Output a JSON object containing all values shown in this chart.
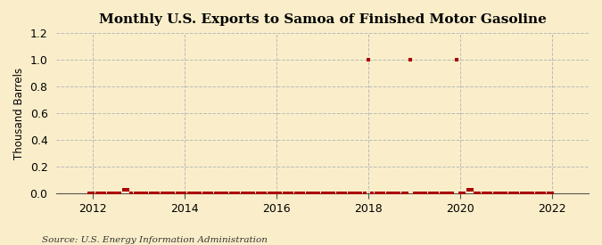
{
  "title": "Monthly U.S. Exports to Samoa of Finished Motor Gasoline",
  "ylabel": "Thousand Barrels",
  "source": "Source: U.S. Energy Information Administration",
  "background_color": "#faeeca",
  "line_color": "#aa0000",
  "grid_color": "#bbbbbb",
  "ylim": [
    0,
    1.2
  ],
  "yticks": [
    0.0,
    0.2,
    0.4,
    0.6,
    0.8,
    1.0,
    1.2
  ],
  "xlim_start": 2011.2,
  "xlim_end": 2022.8,
  "xticks": [
    2012,
    2014,
    2016,
    2018,
    2020,
    2022
  ],
  "data": [
    [
      2011.917,
      0.0
    ],
    [
      2012.0,
      0.0
    ],
    [
      2012.083,
      0.0
    ],
    [
      2012.167,
      0.0
    ],
    [
      2012.25,
      0.0
    ],
    [
      2012.333,
      0.0
    ],
    [
      2012.417,
      0.0
    ],
    [
      2012.5,
      0.0
    ],
    [
      2012.583,
      0.0
    ],
    [
      2012.667,
      0.03
    ],
    [
      2012.75,
      0.03
    ],
    [
      2012.833,
      0.0
    ],
    [
      2012.917,
      0.0
    ],
    [
      2013.0,
      0.0
    ],
    [
      2013.083,
      0.0
    ],
    [
      2013.167,
      0.0
    ],
    [
      2013.25,
      0.0
    ],
    [
      2013.333,
      0.0
    ],
    [
      2013.417,
      0.0
    ],
    [
      2013.5,
      0.0
    ],
    [
      2013.583,
      0.0
    ],
    [
      2013.667,
      0.0
    ],
    [
      2013.75,
      0.0
    ],
    [
      2013.833,
      0.0
    ],
    [
      2013.917,
      0.0
    ],
    [
      2014.0,
      0.0
    ],
    [
      2014.083,
      0.0
    ],
    [
      2014.167,
      0.0
    ],
    [
      2014.25,
      0.0
    ],
    [
      2014.333,
      0.0
    ],
    [
      2014.417,
      0.0
    ],
    [
      2014.5,
      0.0
    ],
    [
      2014.583,
      0.0
    ],
    [
      2014.667,
      0.0
    ],
    [
      2014.75,
      0.0
    ],
    [
      2014.833,
      0.0
    ],
    [
      2014.917,
      0.0
    ],
    [
      2015.0,
      0.0
    ],
    [
      2015.083,
      0.0
    ],
    [
      2015.167,
      0.0
    ],
    [
      2015.25,
      0.0
    ],
    [
      2015.333,
      0.0
    ],
    [
      2015.417,
      0.0
    ],
    [
      2015.5,
      0.0
    ],
    [
      2015.583,
      0.0
    ],
    [
      2015.667,
      0.0
    ],
    [
      2015.75,
      0.0
    ],
    [
      2015.833,
      0.0
    ],
    [
      2015.917,
      0.0
    ],
    [
      2016.0,
      0.0
    ],
    [
      2016.083,
      0.0
    ],
    [
      2016.167,
      0.0
    ],
    [
      2016.25,
      0.0
    ],
    [
      2016.333,
      0.0
    ],
    [
      2016.417,
      0.0
    ],
    [
      2016.5,
      0.0
    ],
    [
      2016.583,
      0.0
    ],
    [
      2016.667,
      0.0
    ],
    [
      2016.75,
      0.0
    ],
    [
      2016.833,
      0.0
    ],
    [
      2016.917,
      0.0
    ],
    [
      2017.0,
      0.0
    ],
    [
      2017.083,
      0.0
    ],
    [
      2017.167,
      0.0
    ],
    [
      2017.25,
      0.0
    ],
    [
      2017.333,
      0.0
    ],
    [
      2017.417,
      0.0
    ],
    [
      2017.5,
      0.0
    ],
    [
      2017.583,
      0.0
    ],
    [
      2017.667,
      0.0
    ],
    [
      2017.75,
      0.0
    ],
    [
      2017.833,
      0.0
    ],
    [
      2017.917,
      0.0
    ],
    [
      2018.0,
      1.0
    ],
    [
      2018.083,
      0.0
    ],
    [
      2018.167,
      0.0
    ],
    [
      2018.25,
      0.0
    ],
    [
      2018.333,
      0.0
    ],
    [
      2018.417,
      0.0
    ],
    [
      2018.5,
      0.0
    ],
    [
      2018.583,
      0.0
    ],
    [
      2018.667,
      0.0
    ],
    [
      2018.75,
      0.0
    ],
    [
      2018.833,
      0.0
    ],
    [
      2018.917,
      1.0
    ],
    [
      2019.0,
      0.0
    ],
    [
      2019.083,
      0.0
    ],
    [
      2019.167,
      0.0
    ],
    [
      2019.25,
      0.0
    ],
    [
      2019.333,
      0.0
    ],
    [
      2019.417,
      0.0
    ],
    [
      2019.5,
      0.0
    ],
    [
      2019.583,
      0.0
    ],
    [
      2019.667,
      0.0
    ],
    [
      2019.75,
      0.0
    ],
    [
      2019.833,
      0.0
    ],
    [
      2019.917,
      1.0
    ],
    [
      2020.0,
      0.0
    ],
    [
      2020.083,
      0.0
    ],
    [
      2020.167,
      0.03
    ],
    [
      2020.25,
      0.03
    ],
    [
      2020.333,
      0.0
    ],
    [
      2020.417,
      0.0
    ],
    [
      2020.5,
      0.0
    ],
    [
      2020.583,
      0.0
    ],
    [
      2020.667,
      0.0
    ],
    [
      2020.75,
      0.0
    ],
    [
      2020.833,
      0.0
    ],
    [
      2020.917,
      0.0
    ],
    [
      2021.0,
      0.0
    ],
    [
      2021.083,
      0.0
    ],
    [
      2021.167,
      0.0
    ],
    [
      2021.25,
      0.0
    ],
    [
      2021.333,
      0.0
    ],
    [
      2021.417,
      0.0
    ],
    [
      2021.5,
      0.0
    ],
    [
      2021.583,
      0.0
    ],
    [
      2021.667,
      0.0
    ],
    [
      2021.75,
      0.0
    ],
    [
      2021.833,
      0.0
    ],
    [
      2021.917,
      0.0
    ],
    [
      2022.0,
      0.0
    ]
  ]
}
